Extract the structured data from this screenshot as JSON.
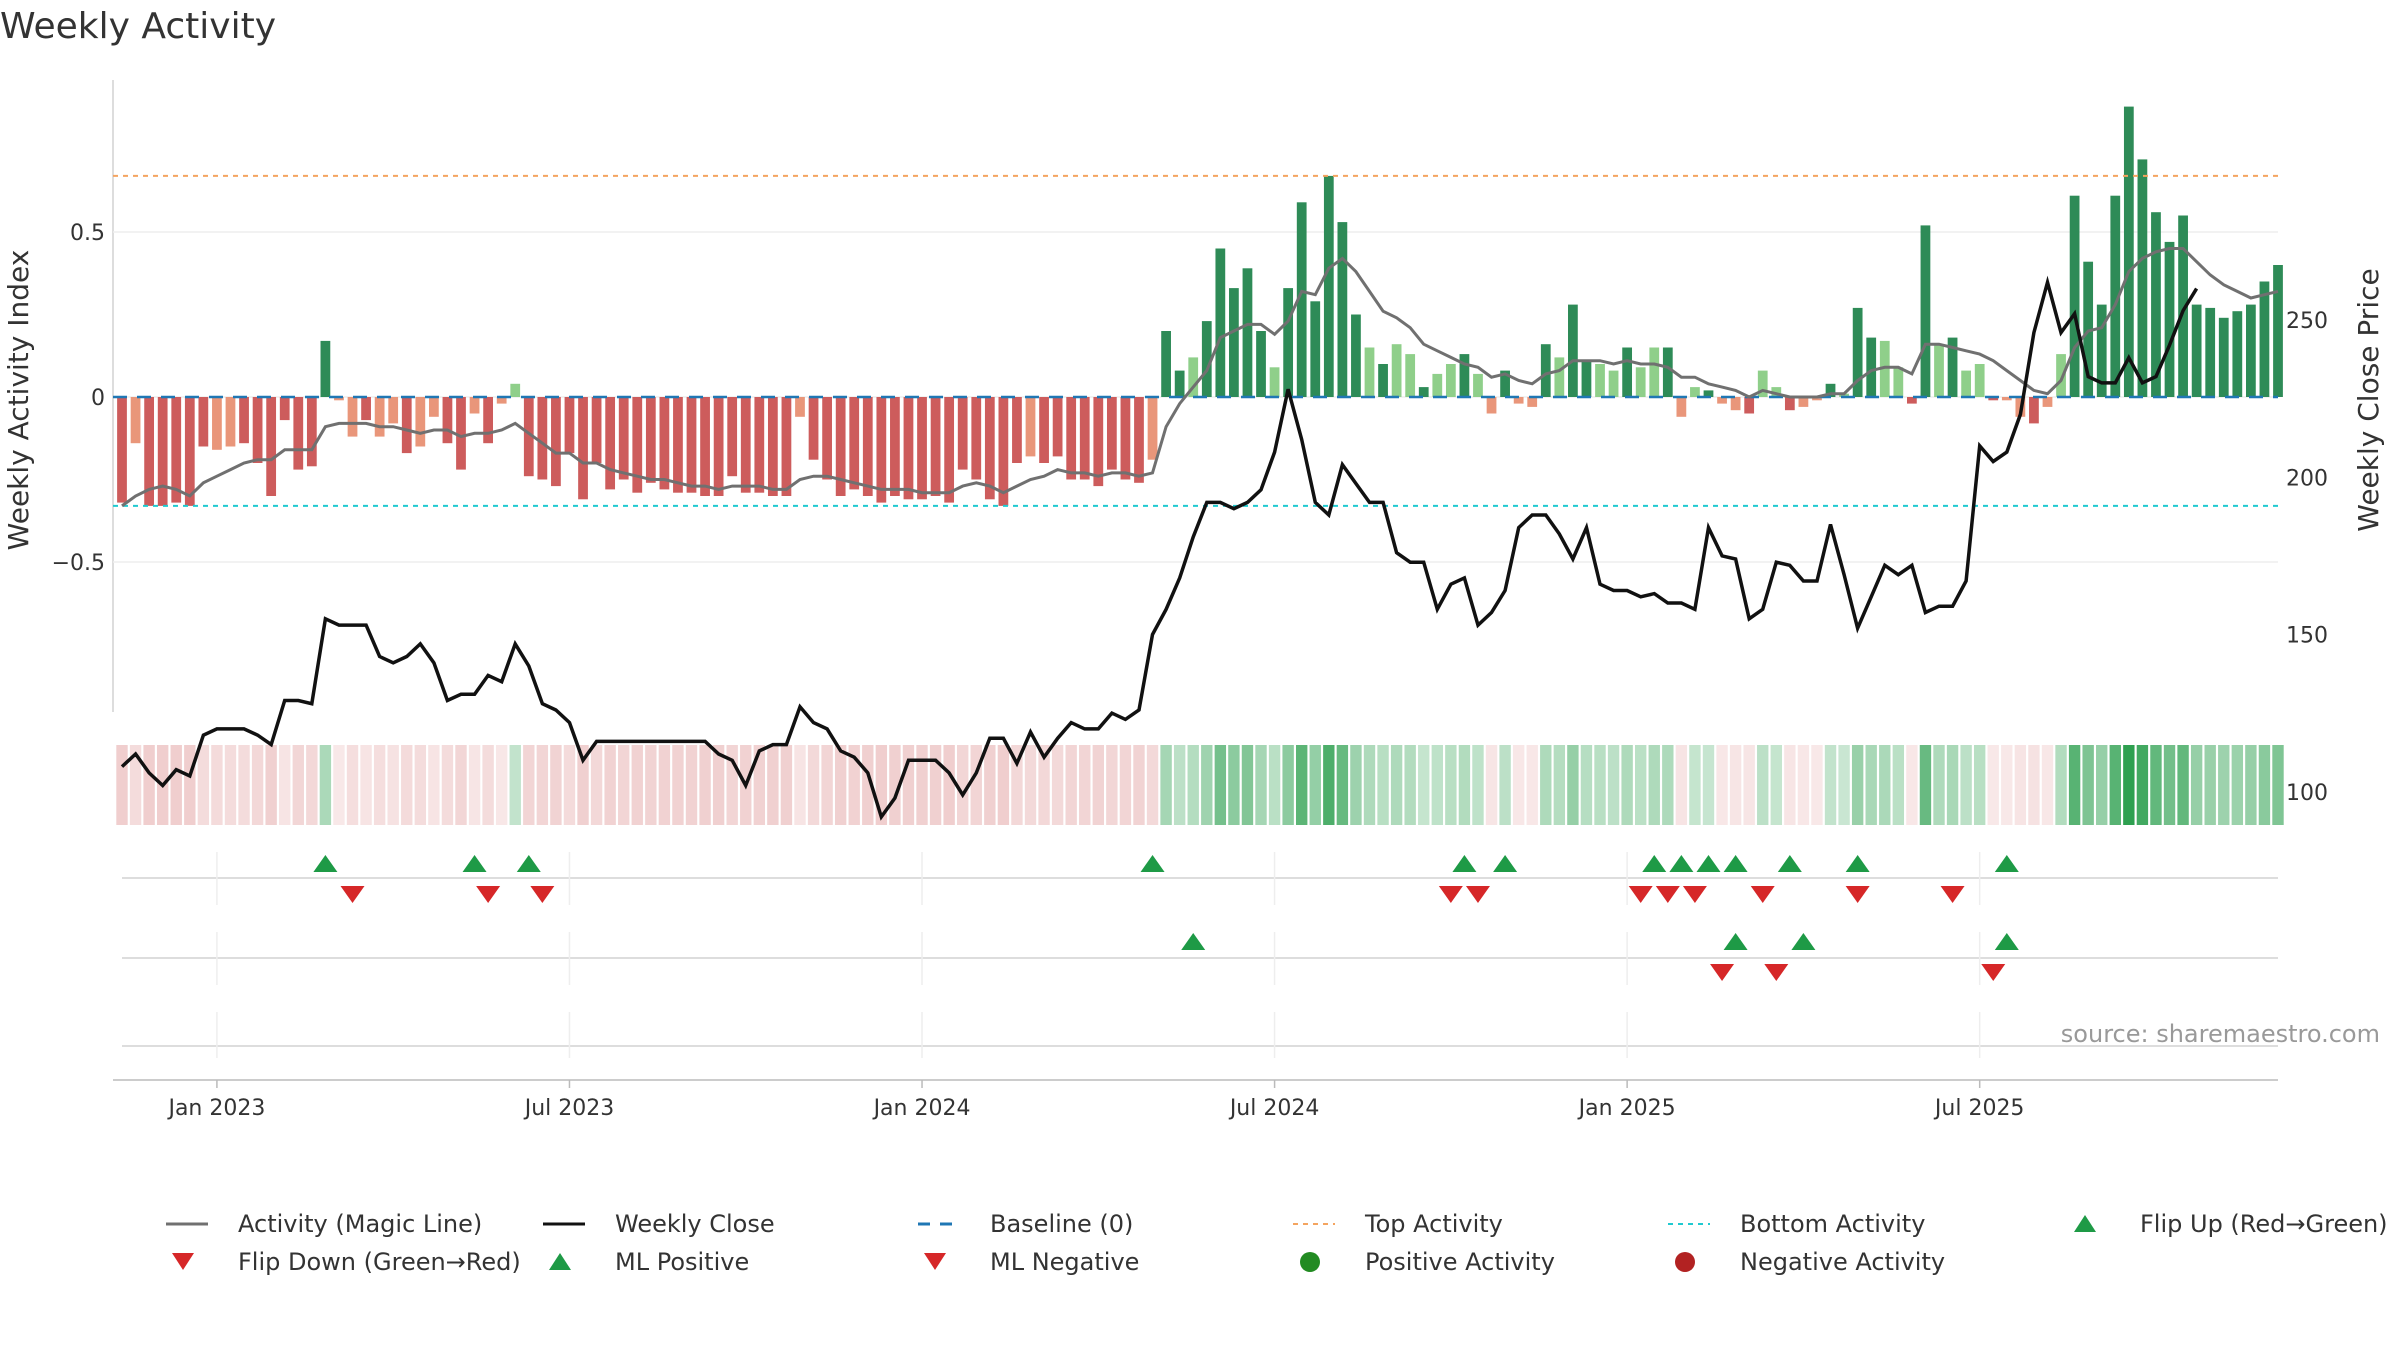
{
  "chart_data": {
    "type": "bar",
    "title": "Weekly Activity",
    "ylabel_left": "Weekly Activity Index",
    "ylabel_right": "Weekly Close Price",
    "ylim_left": [
      -1.0,
      0.95
    ],
    "ylim_right": [
      70,
      275
    ],
    "yticks_left": [
      {
        "v": 0.5,
        "label": "0.5"
      },
      {
        "v": 0,
        "label": "0"
      },
      {
        "v": -0.5,
        "label": "−0.5"
      }
    ],
    "yticks_right": [
      {
        "v": 250,
        "label": "250"
      },
      {
        "v": 200,
        "label": "200"
      },
      {
        "v": 150,
        "label": "150"
      },
      {
        "v": 100,
        "label": "100"
      }
    ],
    "xticks": [
      {
        "week": 7,
        "label": "Jan 2023"
      },
      {
        "week": 33,
        "label": "Jul 2023"
      },
      {
        "week": 59,
        "label": "Jan 2024"
      },
      {
        "week": 85,
        "label": "Jul 2024"
      },
      {
        "week": 111,
        "label": "Jan 2025"
      },
      {
        "week": 137,
        "label": "Jul 2025"
      }
    ],
    "top_activity": 0.67,
    "bottom_activity": -0.33,
    "activity": [
      -0.32,
      -0.14,
      -0.33,
      -0.33,
      -0.32,
      -0.33,
      -0.15,
      -0.16,
      -0.15,
      -0.14,
      -0.2,
      -0.3,
      -0.07,
      -0.22,
      -0.21,
      0.17,
      -0.01,
      -0.12,
      -0.07,
      -0.12,
      -0.08,
      -0.17,
      -0.15,
      -0.06,
      -0.14,
      -0.22,
      -0.05,
      -0.14,
      -0.02,
      0.04,
      -0.24,
      -0.25,
      -0.27,
      -0.17,
      -0.31,
      -0.2,
      -0.28,
      -0.25,
      -0.29,
      -0.26,
      -0.28,
      -0.29,
      -0.29,
      -0.3,
      -0.3,
      -0.24,
      -0.29,
      -0.29,
      -0.3,
      -0.3,
      -0.06,
      -0.19,
      -0.25,
      -0.3,
      -0.28,
      -0.3,
      -0.32,
      -0.3,
      -0.31,
      -0.31,
      -0.3,
      -0.32,
      -0.22,
      -0.25,
      -0.31,
      -0.33,
      -0.2,
      -0.18,
      -0.2,
      -0.18,
      -0.25,
      -0.25,
      -0.27,
      -0.22,
      -0.25,
      -0.26,
      -0.19,
      0.2,
      0.08,
      0.12,
      0.23,
      0.45,
      0.33,
      0.39,
      0.2,
      0.09,
      0.33,
      0.59,
      0.29,
      0.67,
      0.53,
      0.25,
      0.15,
      0.1,
      0.16,
      0.13,
      0.03,
      0.07,
      0.1,
      0.13,
      0.07,
      -0.05,
      0.08,
      -0.02,
      -0.03,
      0.16,
      0.12,
      0.28,
      0.11,
      0.1,
      0.08,
      0.15,
      0.09,
      0.15,
      0.15,
      -0.06,
      0.03,
      0.02,
      -0.02,
      -0.04,
      -0.05,
      0.08,
      0.03,
      -0.04,
      -0.03,
      -0.01,
      0.04,
      0.01,
      0.27,
      0.18,
      0.17,
      0.09,
      -0.02,
      0.52,
      0.16,
      0.18,
      0.08,
      0.1,
      -0.01,
      -0.01,
      -0.06,
      -0.08,
      -0.03,
      0.13,
      0.61,
      0.41,
      0.28,
      0.61,
      0.88,
      0.72,
      0.56,
      0.47,
      0.55,
      0.28,
      0.27,
      0.24,
      0.26,
      0.28,
      0.35,
      0.4
    ],
    "close": [
      108,
      112,
      106,
      102,
      107,
      105,
      118,
      120,
      120,
      120,
      118,
      115,
      129,
      129,
      128,
      155,
      153,
      153,
      153,
      143,
      141,
      143,
      147,
      141,
      129,
      131,
      131,
      137,
      135,
      147,
      140,
      128,
      126,
      122,
      110,
      116,
      116,
      116,
      116,
      116,
      116,
      116,
      116,
      116,
      112,
      110,
      102,
      113,
      115,
      115,
      127,
      122,
      120,
      113,
      111,
      106,
      92,
      98,
      110,
      110,
      110,
      106,
      99,
      106,
      117,
      117,
      109,
      119,
      111,
      117,
      122,
      120,
      120,
      125,
      123,
      126,
      150,
      158,
      168,
      181,
      192,
      192,
      190,
      192,
      196,
      208,
      228,
      212,
      192,
      188,
      204,
      198,
      192,
      192,
      176,
      173,
      173,
      158,
      166,
      168,
      153,
      157,
      164,
      184,
      188,
      188,
      182,
      174,
      184,
      166,
      164,
      164,
      162,
      163,
      160,
      160,
      158,
      184,
      175,
      174,
      155,
      158,
      173,
      172,
      167,
      167,
      185,
      169,
      152,
      162,
      172,
      169,
      172,
      157,
      159,
      159,
      167,
      210,
      205,
      208,
      220,
      246,
      262,
      246,
      252,
      232,
      230,
      230,
      238,
      230,
      232,
      242,
      253,
      260
    ],
    "magic": [
      -0.33,
      -0.3,
      -0.28,
      -0.27,
      -0.28,
      -0.3,
      -0.26,
      -0.24,
      -0.22,
      -0.2,
      -0.19,
      -0.19,
      -0.16,
      -0.16,
      -0.16,
      -0.09,
      -0.08,
      -0.08,
      -0.08,
      -0.09,
      -0.09,
      -0.1,
      -0.11,
      -0.1,
      -0.1,
      -0.12,
      -0.11,
      -0.11,
      -0.1,
      -0.08,
      -0.11,
      -0.14,
      -0.17,
      -0.17,
      -0.2,
      -0.2,
      -0.22,
      -0.23,
      -0.24,
      -0.25,
      -0.25,
      -0.26,
      -0.27,
      -0.27,
      -0.28,
      -0.27,
      -0.27,
      -0.27,
      -0.28,
      -0.28,
      -0.25,
      -0.24,
      -0.24,
      -0.25,
      -0.26,
      -0.27,
      -0.28,
      -0.28,
      -0.28,
      -0.29,
      -0.29,
      -0.29,
      -0.27,
      -0.26,
      -0.27,
      -0.29,
      -0.27,
      -0.25,
      -0.24,
      -0.22,
      -0.23,
      -0.23,
      -0.24,
      -0.23,
      -0.23,
      -0.24,
      -0.23,
      -0.09,
      -0.02,
      0.03,
      0.08,
      0.18,
      0.2,
      0.22,
      0.22,
      0.19,
      0.23,
      0.32,
      0.31,
      0.39,
      0.42,
      0.38,
      0.32,
      0.26,
      0.24,
      0.21,
      0.16,
      0.14,
      0.12,
      0.1,
      0.09,
      0.06,
      0.07,
      0.05,
      0.04,
      0.07,
      0.08,
      0.11,
      0.11,
      0.11,
      0.1,
      0.11,
      0.1,
      0.1,
      0.09,
      0.06,
      0.06,
      0.04,
      0.03,
      0.02,
      0.0,
      0.02,
      0.01,
      0.0,
      0.0,
      0.0,
      0.01,
      0.01,
      0.05,
      0.08,
      0.09,
      0.09,
      0.07,
      0.16,
      0.16,
      0.15,
      0.14,
      0.13,
      0.11,
      0.08,
      0.05,
      0.02,
      0.01,
      0.05,
      0.15,
      0.2,
      0.21,
      0.28,
      0.38,
      0.42,
      0.44,
      0.45,
      0.45,
      0.41,
      0.37,
      0.34,
      0.32,
      0.3,
      0.31,
      0.32
    ],
    "flip_up_weeks": [
      15,
      26,
      30,
      76,
      99,
      102,
      113,
      115,
      117,
      119,
      123,
      128,
      139
    ],
    "flip_down_weeks": [
      17,
      27,
      31,
      98,
      100,
      112,
      114,
      116,
      121,
      128,
      135
    ],
    "ml_positive_weeks": [
      79,
      119,
      124,
      139
    ],
    "ml_negative_weeks": [
      118,
      122,
      138
    ],
    "legend": [
      "Activity (Magic Line)",
      "Weekly Close",
      "Baseline (0)",
      "Top Activity",
      "Bottom Activity",
      "Flip Up (Red→Green)",
      "Flip Down (Green→Red)",
      "ML Positive",
      "ML Negative",
      "Positive Activity",
      "Negative Activity"
    ],
    "colors": {
      "pos_strong": "#2e8b57",
      "pos_weak": "#8fcf8a",
      "neg_strong": "#cd5c5c",
      "neg_weak": "#e9967a",
      "magic": "#707070",
      "close": "#111111",
      "baseline": "#1f77b4",
      "top": "#f4a460",
      "bottom": "#20c9d0",
      "up_marker": "#1e9a46",
      "down_marker": "#d62728",
      "pos_dot": "#228b22",
      "neg_dot": "#b22222"
    }
  },
  "source": "source: sharemaestro.com"
}
